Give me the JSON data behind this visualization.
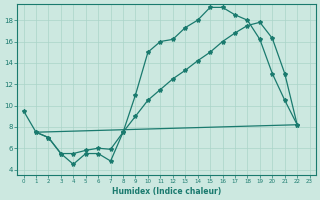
{
  "xlabel": "Humidex (Indice chaleur)",
  "bg_color": "#cce8e0",
  "line_color": "#1a7a6e",
  "grid_color": "#aad4c8",
  "xlim": [
    -0.5,
    23.5
  ],
  "ylim": [
    3.5,
    19.5
  ],
  "yticks": [
    4,
    6,
    8,
    10,
    12,
    14,
    16,
    18
  ],
  "xticks": [
    0,
    1,
    2,
    3,
    4,
    5,
    6,
    7,
    8,
    9,
    10,
    11,
    12,
    13,
    14,
    15,
    16,
    17,
    18,
    19,
    20,
    21,
    22,
    23
  ],
  "curve1_x": [
    0,
    1,
    2,
    3,
    4,
    5,
    6,
    7,
    8,
    9,
    10,
    11,
    12,
    13,
    14,
    15,
    16,
    17,
    18,
    19,
    20,
    21,
    22
  ],
  "curve1_y": [
    9.5,
    7.5,
    7.0,
    5.5,
    4.5,
    5.5,
    5.5,
    4.8,
    7.5,
    11.0,
    15.0,
    16.0,
    16.2,
    17.3,
    18.0,
    19.2,
    19.2,
    18.5,
    18.0,
    16.2,
    13.0,
    10.5,
    8.2
  ],
  "curve2_x": [
    1,
    22
  ],
  "curve2_y": [
    7.5,
    8.2
  ],
  "curve3_x": [
    1,
    2,
    3,
    4,
    5,
    6,
    7,
    8,
    9,
    10,
    11,
    12,
    13,
    14,
    15,
    16,
    17,
    18,
    19,
    20,
    21,
    22
  ],
  "curve3_y": [
    7.5,
    7.0,
    5.5,
    5.5,
    5.8,
    6.0,
    5.9,
    7.5,
    9.0,
    10.5,
    11.5,
    12.5,
    13.3,
    14.2,
    15.0,
    16.0,
    16.8,
    17.5,
    17.8,
    16.3,
    13.0,
    8.2
  ]
}
